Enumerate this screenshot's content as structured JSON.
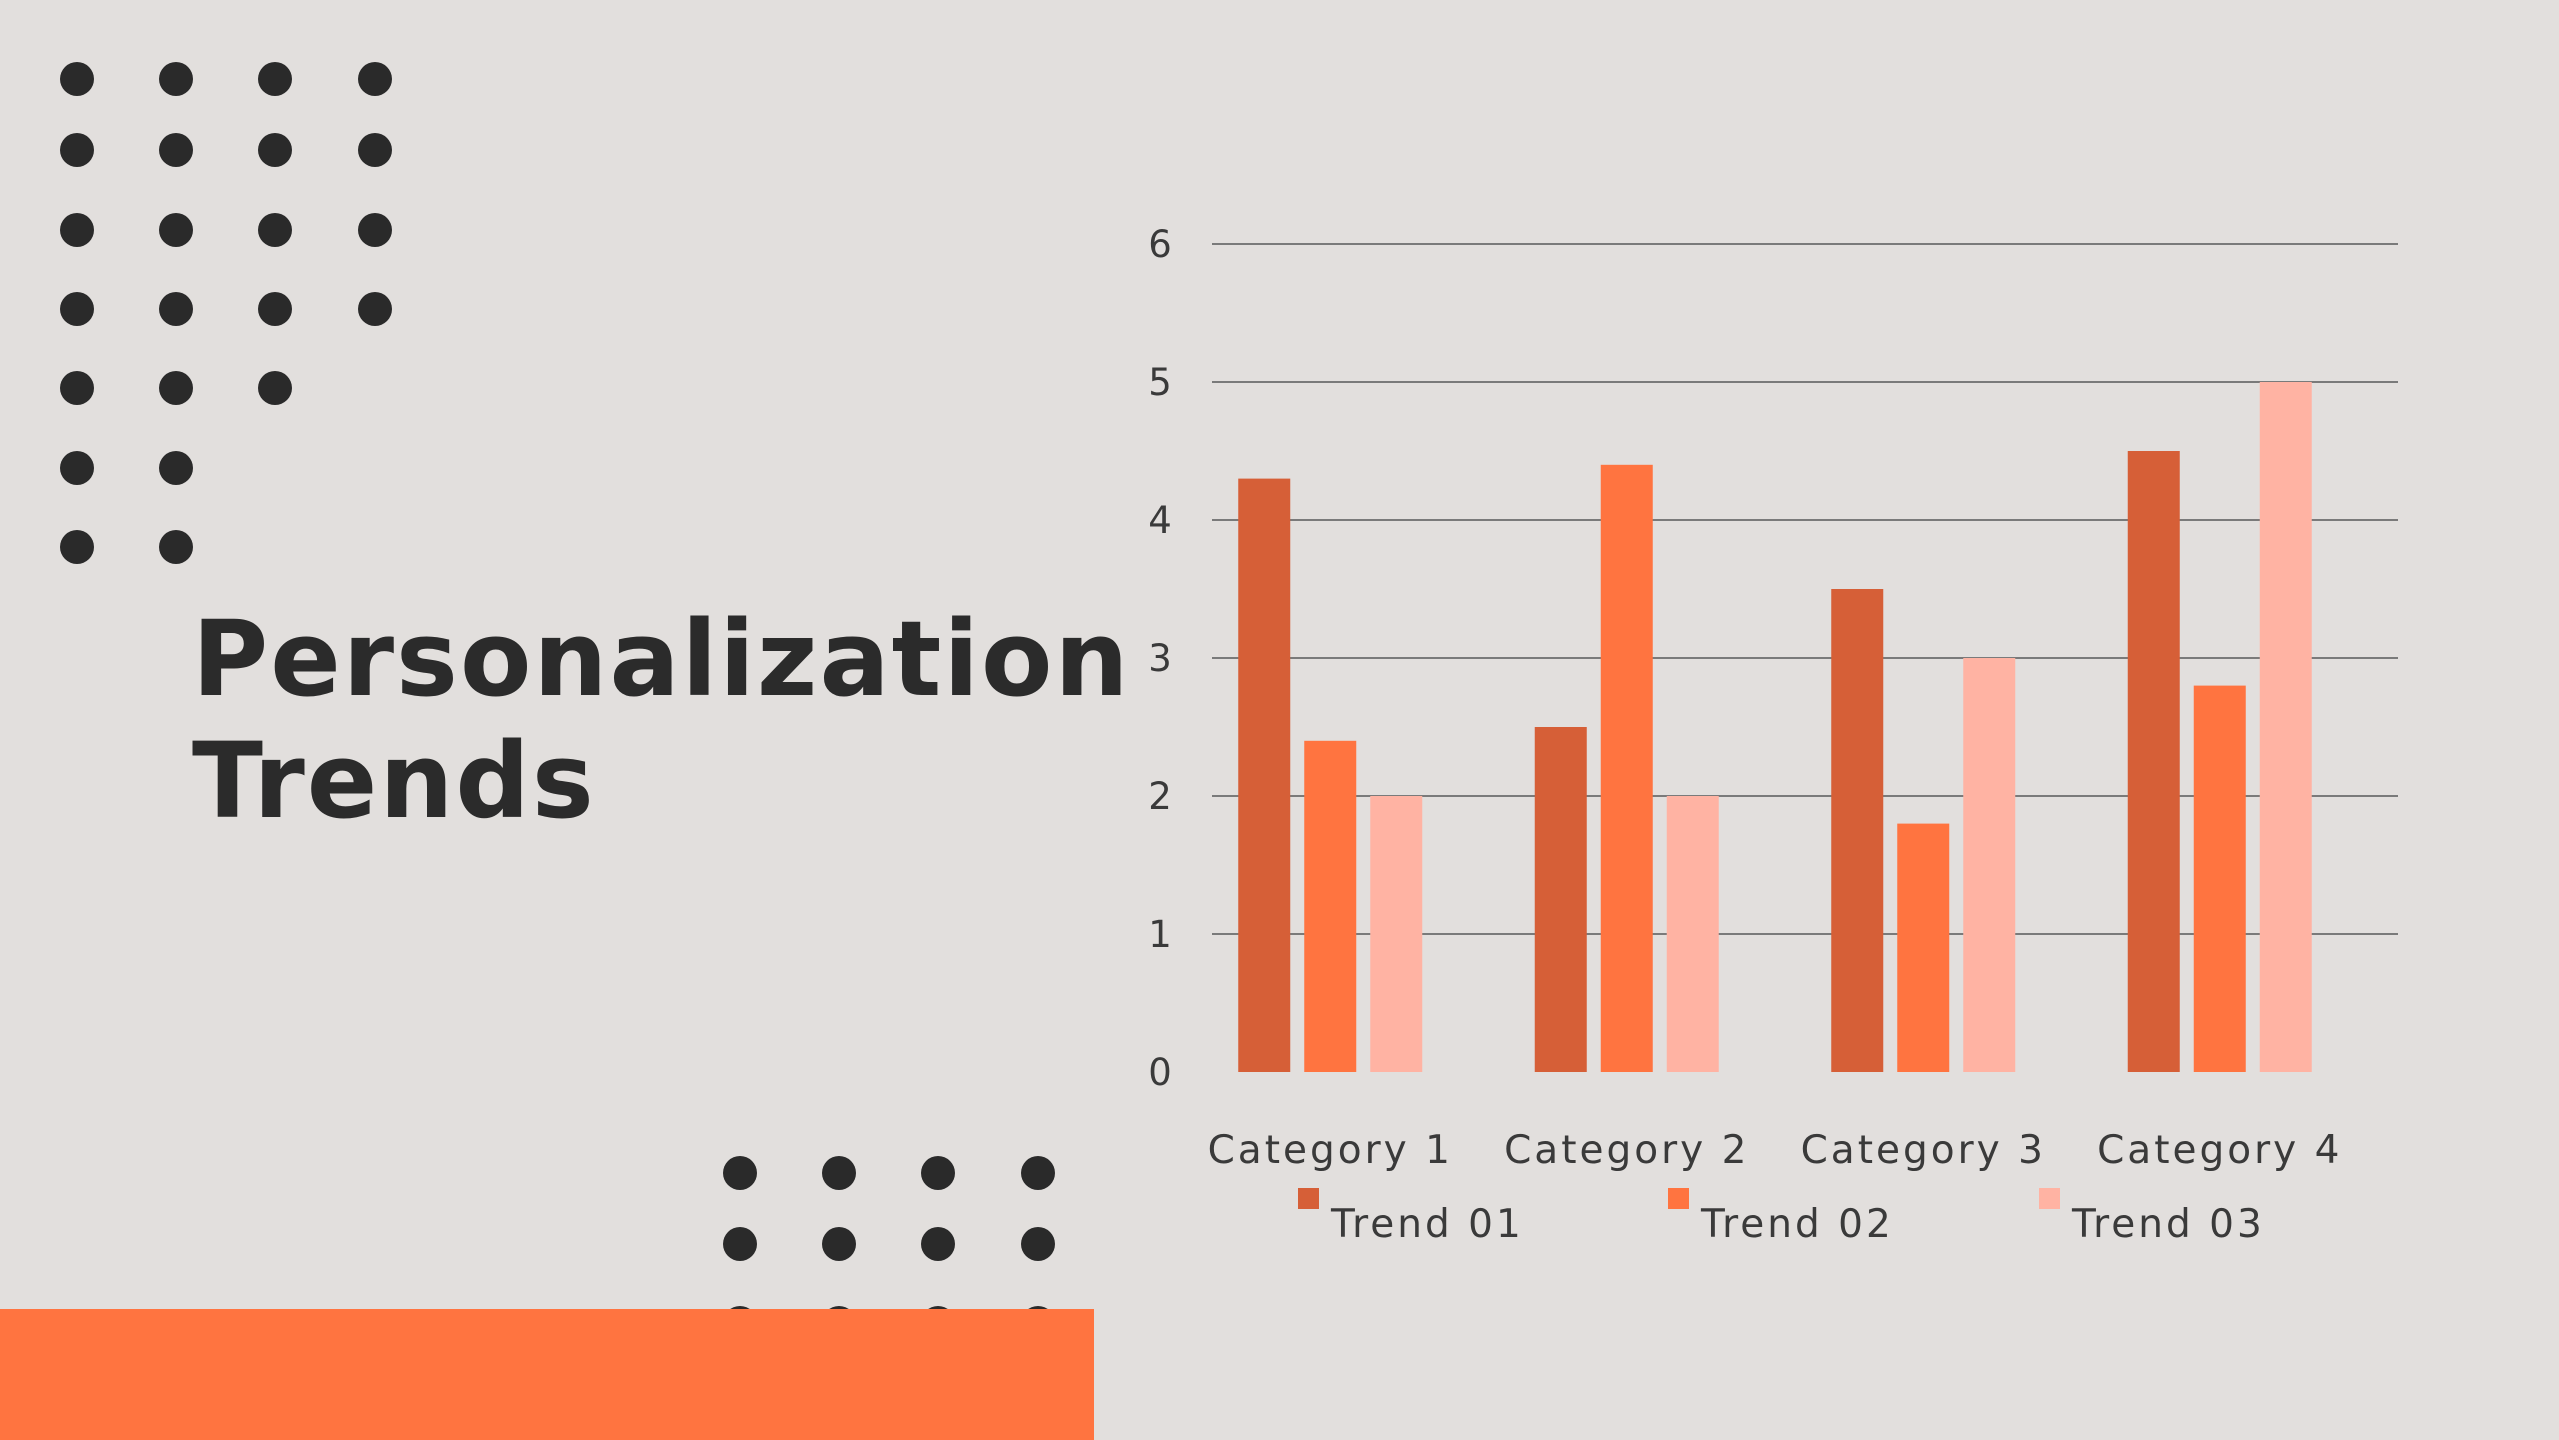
{
  "slide": {
    "title_line1": "Personalization",
    "title_line2": "Trends",
    "background_color": "#e2dfdd",
    "dark_color": "#2a2a2a",
    "accent_color": "#ff7440"
  },
  "chart_data": {
    "type": "bar",
    "title": "",
    "xlabel": "",
    "ylabel": "",
    "categories": [
      "Category 1",
      "Category 2",
      "Category 3",
      "Category 4"
    ],
    "series": [
      {
        "name": "Trend 01",
        "color": "#d65f37",
        "values": [
          4.3,
          2.5,
          3.5,
          4.5
        ]
      },
      {
        "name": "Trend 02",
        "color": "#ff7440",
        "values": [
          2.4,
          4.4,
          1.8,
          2.8
        ]
      },
      {
        "name": "Trend 03",
        "color": "#ffb3a3",
        "values": [
          2.0,
          2.0,
          3.0,
          5.0
        ]
      }
    ],
    "ylim": [
      0,
      6
    ],
    "yticks": [
      "0",
      "1",
      "2",
      "3",
      "4",
      "5",
      "6"
    ],
    "grid": true,
    "legend_position": "bottom"
  }
}
